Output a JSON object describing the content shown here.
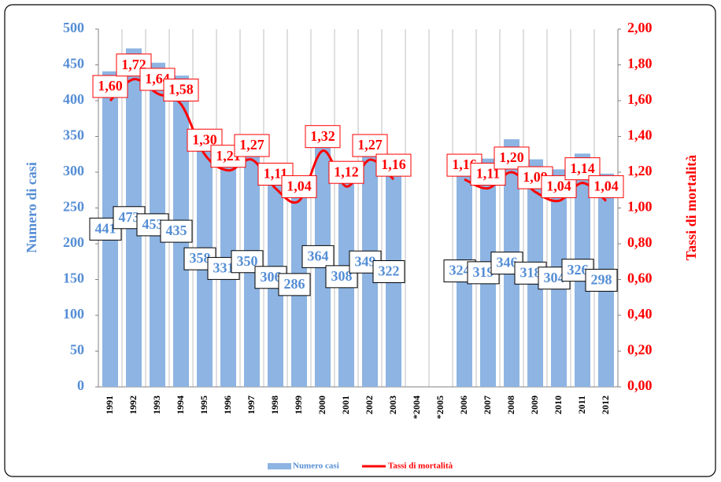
{
  "chart_data": {
    "type": "bar_line",
    "categories": [
      "1991",
      "1992",
      "1993",
      "1994",
      "1995",
      "1996",
      "1997",
      "1998",
      "1999",
      "2000",
      "2001",
      "2002",
      "2003",
      "*2004",
      "*2005",
      "2006",
      "2007",
      "2008",
      "2009",
      "2010",
      "2011",
      "2012"
    ],
    "series": [
      {
        "name": "Numero casi",
        "type": "bar",
        "color": "#8db4e2",
        "values": [
          441,
          473,
          453,
          435,
          358,
          331,
          350,
          306,
          286,
          364,
          308,
          349,
          322,
          null,
          null,
          324,
          319,
          346,
          318,
          304,
          326,
          298
        ]
      },
      {
        "name": "Tassi di mortalità",
        "type": "line",
        "axis": "y2",
        "color": "#ff0000",
        "values": [
          1.6,
          1.72,
          1.64,
          1.58,
          1.3,
          1.21,
          1.27,
          1.11,
          1.04,
          1.32,
          1.12,
          1.27,
          1.16,
          null,
          null,
          1.16,
          1.11,
          1.2,
          1.09,
          1.04,
          1.14,
          1.04
        ],
        "value_labels": [
          "1,60",
          "1,72",
          "1,64",
          "1,58",
          "1,30",
          "1,21",
          "1,27",
          "1,11",
          "1,04",
          "1,32",
          "1,12",
          "1,27",
          "1,16",
          null,
          null,
          "1,16",
          "1,11",
          "1,20",
          "1,09",
          "1,04",
          "1,14",
          "1,04"
        ]
      }
    ],
    "ylabel": "Numero di casi",
    "y2label": "Tassi di mortalità",
    "ylim": [
      0,
      500
    ],
    "yticks": [
      0,
      50,
      100,
      150,
      200,
      250,
      300,
      350,
      400,
      450,
      500
    ],
    "y2lim": [
      0,
      2
    ],
    "y2ticks": [
      {
        "value": 0,
        "label": "0,00"
      },
      {
        "value": 0.2,
        "label": "0,20"
      },
      {
        "value": 0.4,
        "label": "0,40"
      },
      {
        "value": 0.6,
        "label": "0,60"
      },
      {
        "value": 0.8,
        "label": "0,80"
      },
      {
        "value": 1,
        "label": "1,00"
      },
      {
        "value": 1.2,
        "label": "1,20"
      },
      {
        "value": 1.4,
        "label": "1,40"
      },
      {
        "value": 1.6,
        "label": "1,60"
      },
      {
        "value": 1.8,
        "label": "1,80"
      },
      {
        "value": 2,
        "label": "2,00"
      }
    ],
    "grid": "vertical",
    "legend": "bottom"
  }
}
